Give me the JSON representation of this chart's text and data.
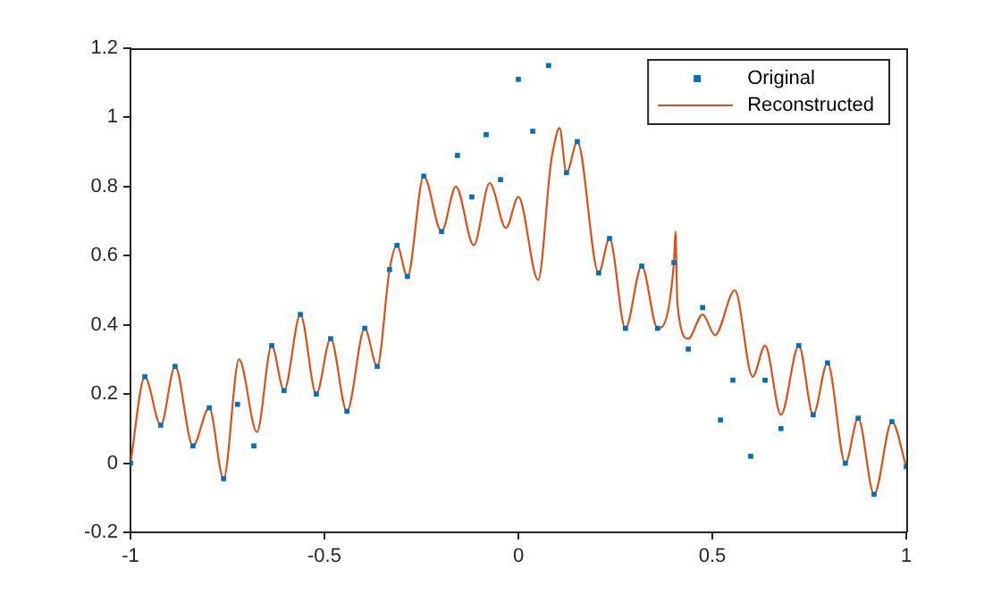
{
  "chart_data": {
    "type": "line",
    "xlim": [
      -1,
      1
    ],
    "xticks": [
      -1,
      -0.5,
      0,
      0.5,
      1
    ],
    "ylim": [
      -0.2,
      1.2
    ],
    "yticks": [
      -0.2,
      0,
      0.2,
      0.4,
      0.6,
      0.8,
      1,
      1.2
    ],
    "grid": false,
    "legend": "top right",
    "series": [
      {
        "name": "Original",
        "type": "scatter",
        "marker": "square",
        "color": "#0072bd",
        "x": [
          -1,
          -0.963,
          -0.922,
          -0.885,
          -0.839,
          -0.797,
          -0.76,
          -0.724,
          -0.682,
          -0.636,
          -0.604,
          -0.562,
          -0.521,
          -0.484,
          -0.442,
          -0.396,
          -0.364,
          -0.332,
          -0.313,
          -0.286,
          -0.244,
          -0.198,
          -0.157,
          -0.12,
          -0.083,
          -0.046,
          0,
          0.037,
          0.078,
          0.124,
          0.152,
          0.207,
          0.235,
          0.276,
          0.318,
          0.359,
          0.401,
          0.438,
          0.475,
          0.521,
          0.553,
          0.599,
          0.636,
          0.677,
          0.723,
          0.76,
          0.797,
          0.843,
          0.876,
          0.917,
          0.963,
          1
        ],
        "values": [
          0,
          0.25,
          0.11,
          0.28,
          0.05,
          0.16,
          -0.045,
          0.17,
          0.05,
          0.34,
          0.21,
          0.43,
          0.2,
          0.36,
          0.15,
          0.39,
          0.28,
          0.56,
          0.63,
          0.54,
          0.83,
          0.67,
          0.89,
          0.77,
          0.95,
          0.82,
          1.11,
          0.96,
          1.15,
          0.84,
          0.93,
          0.55,
          0.65,
          0.39,
          0.57,
          0.39,
          0.58,
          0.33,
          0.45,
          0.125,
          0.24,
          0.02,
          0.24,
          0.1,
          0.34,
          0.14,
          0.29,
          0,
          0.13,
          -0.09,
          0.12,
          -0.01
        ]
      },
      {
        "name": "Reconstructed",
        "type": "line",
        "marker": "none",
        "line_style": "solid",
        "color": "#d95319",
        "x": [
          -1,
          -0.963,
          -0.922,
          -0.885,
          -0.839,
          -0.797,
          -0.76,
          -0.72,
          -0.674,
          -0.636,
          -0.604,
          -0.562,
          -0.521,
          -0.484,
          -0.442,
          -0.396,
          -0.364,
          -0.332,
          -0.313,
          -0.286,
          -0.244,
          -0.198,
          -0.161,
          -0.115,
          -0.074,
          -0.032,
          0,
          0.051,
          0.083,
          0.092,
          0.106,
          0.124,
          0.152,
          0.207,
          0.235,
          0.276,
          0.318,
          0.359,
          0.401,
          0.405,
          0.41,
          0.438,
          0.475,
          0.507,
          0.558,
          0.604,
          0.636,
          0.677,
          0.723,
          0.76,
          0.797,
          0.843,
          0.876,
          0.917,
          0.963,
          1
        ],
        "values": [
          0,
          0.25,
          0.11,
          0.28,
          0.05,
          0.16,
          -0.045,
          0.3,
          0.09,
          0.34,
          0.21,
          0.43,
          0.2,
          0.36,
          0.15,
          0.39,
          0.28,
          0.56,
          0.63,
          0.54,
          0.83,
          0.67,
          0.8,
          0.63,
          0.81,
          0.68,
          0.77,
          0.53,
          0.86,
          0.92,
          0.97,
          0.84,
          0.93,
          0.55,
          0.65,
          0.39,
          0.57,
          0.39,
          0.58,
          0.67,
          0.46,
          0.36,
          0.43,
          0.37,
          0.5,
          0.25,
          0.34,
          0.14,
          0.34,
          0.14,
          0.29,
          0,
          0.13,
          -0.09,
          0.12,
          -0.01
        ]
      }
    ]
  }
}
